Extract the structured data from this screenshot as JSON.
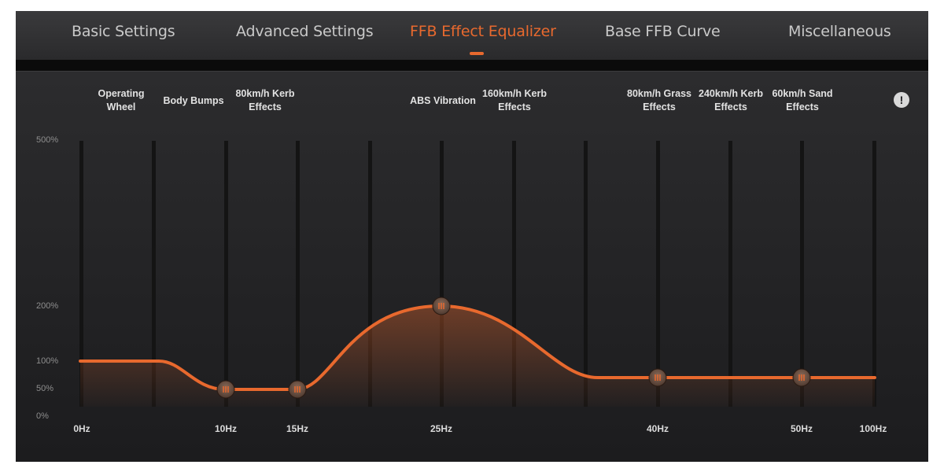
{
  "tabs": [
    {
      "label": "Basic Settings"
    },
    {
      "label": "Advanced Settings"
    },
    {
      "label": "FFB Effect Equalizer"
    },
    {
      "label": "Base FFB Curve"
    },
    {
      "label": "Miscellaneous"
    }
  ],
  "active_tab_index": 2,
  "accent_color": "#e8692e",
  "info_icon": "exclamation-icon",
  "equalizer": {
    "y_ticks": [
      "500%",
      "200%",
      "100%",
      "50%",
      "0%"
    ],
    "band_labels": [
      {
        "text": "Operating\nWheel"
      },
      {
        "text": "Body Bumps"
      },
      {
        "text": "80km/h Kerb\nEffects"
      },
      {
        "text": "ABS Vibration"
      },
      {
        "text": "160km/h Kerb\nEffects"
      },
      {
        "text": "80km/h Grass\nEffects"
      },
      {
        "text": "240km/h Kerb\nEffects"
      },
      {
        "text": "60km/h Sand\nEffects"
      }
    ],
    "x_ticks": [
      "0Hz",
      "10Hz",
      "15Hz",
      "25Hz",
      "40Hz",
      "50Hz",
      "100Hz"
    ],
    "handles": [
      {
        "freq": "10Hz",
        "percent": 50
      },
      {
        "freq": "15Hz",
        "percent": 50
      },
      {
        "freq": "25Hz",
        "percent": 200
      },
      {
        "freq": "40Hz",
        "percent": 70
      },
      {
        "freq": "50Hz",
        "percent": 70
      }
    ]
  }
}
